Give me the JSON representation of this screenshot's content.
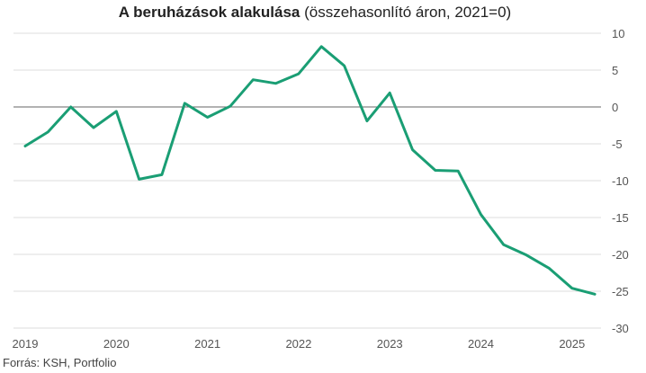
{
  "title": {
    "bold": "A beruházások alakulása",
    "normal": " (összehasonlító áron, 2021=0)"
  },
  "source": "Forrás: KSH, Portfolio",
  "chart_data": {
    "type": "line",
    "title": "A beruházások alakulása (összehasonlító áron, 2021=0)",
    "xlabel": "",
    "ylabel": "",
    "ylim": [
      -30,
      10
    ],
    "yticks": [
      10,
      5,
      0,
      -5,
      -10,
      -15,
      -20,
      -25,
      -30
    ],
    "xtick_labels": [
      "2019",
      "2020",
      "2021",
      "2022",
      "2023",
      "2024",
      "2025"
    ],
    "grid": true,
    "legend": "none",
    "line_color": "#1a9e74",
    "series": [
      {
        "x": [
          2019.0,
          2019.25,
          2019.5,
          2019.75,
          2020.0,
          2020.25,
          2020.5,
          2020.75,
          2021.0,
          2021.25,
          2021.5,
          2021.75,
          2022.0,
          2022.25,
          2022.5,
          2022.75,
          2023.0,
          2023.25,
          2023.5,
          2023.75,
          2024.0,
          2024.25,
          2024.5,
          2024.75,
          2025.0,
          2025.25
        ],
        "values": [
          -5.3,
          -3.4,
          0.0,
          -2.8,
          -0.6,
          -9.8,
          -9.2,
          0.5,
          -1.4,
          0.1,
          3.7,
          3.2,
          4.5,
          8.2,
          5.6,
          -1.9,
          1.9,
          -5.8,
          -8.6,
          -8.7,
          -14.6,
          -18.7,
          -20.1,
          -21.9,
          -24.6,
          -25.4
        ]
      }
    ]
  }
}
